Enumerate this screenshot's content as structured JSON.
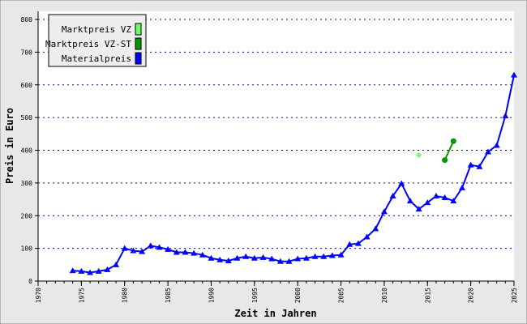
{
  "chart_data": {
    "type": "line",
    "x_label": "Zeit in Jahren",
    "y_label": "Preis in Euro",
    "xlim": [
      1970,
      2025
    ],
    "xticks": [
      1970,
      1975,
      1980,
      1985,
      1990,
      1995,
      2000,
      2005,
      2010,
      2015,
      2020,
      2025
    ],
    "ylim": [
      0,
      800
    ],
    "yticks": [
      0,
      100,
      200,
      300,
      400,
      500,
      600,
      700,
      800
    ],
    "grid": true,
    "legend_position": "upper-left",
    "series": [
      {
        "name": "Marktpreis VZ",
        "color": "#66ff66",
        "marker": "diamond",
        "x": [
          2014
        ],
        "values": [
          385
        ]
      },
      {
        "name": "Marktpreis VZ-ST",
        "color": "#009900",
        "marker": "circle",
        "x": [
          2017,
          2018
        ],
        "values": [
          370,
          428
        ]
      },
      {
        "name": "Materialpreis",
        "color": "#0000ff",
        "marker": "triangle",
        "x": [
          1974,
          1975,
          1976,
          1977,
          1978,
          1979,
          1980,
          1981,
          1982,
          1983,
          1984,
          1985,
          1986,
          1987,
          1988,
          1989,
          1990,
          1991,
          1992,
          1993,
          1994,
          1995,
          1996,
          1997,
          1998,
          1999,
          2000,
          2001,
          2002,
          2003,
          2004,
          2005,
          2006,
          2007,
          2008,
          2009,
          2010,
          2011,
          2012,
          2013,
          2014,
          2015,
          2016,
          2017,
          2018,
          2019,
          2020,
          2021,
          2022,
          2023,
          2024,
          2025
        ],
        "values": [
          32,
          30,
          26,
          30,
          35,
          50,
          100,
          93,
          90,
          108,
          103,
          97,
          88,
          88,
          85,
          80,
          70,
          65,
          62,
          70,
          75,
          70,
          72,
          68,
          60,
          60,
          68,
          70,
          75,
          75,
          78,
          80,
          112,
          115,
          135,
          160,
          212,
          260,
          298,
          245,
          220,
          240,
          260,
          255,
          245,
          285,
          355,
          350,
          395,
          415,
          505,
          630
        ]
      }
    ]
  }
}
